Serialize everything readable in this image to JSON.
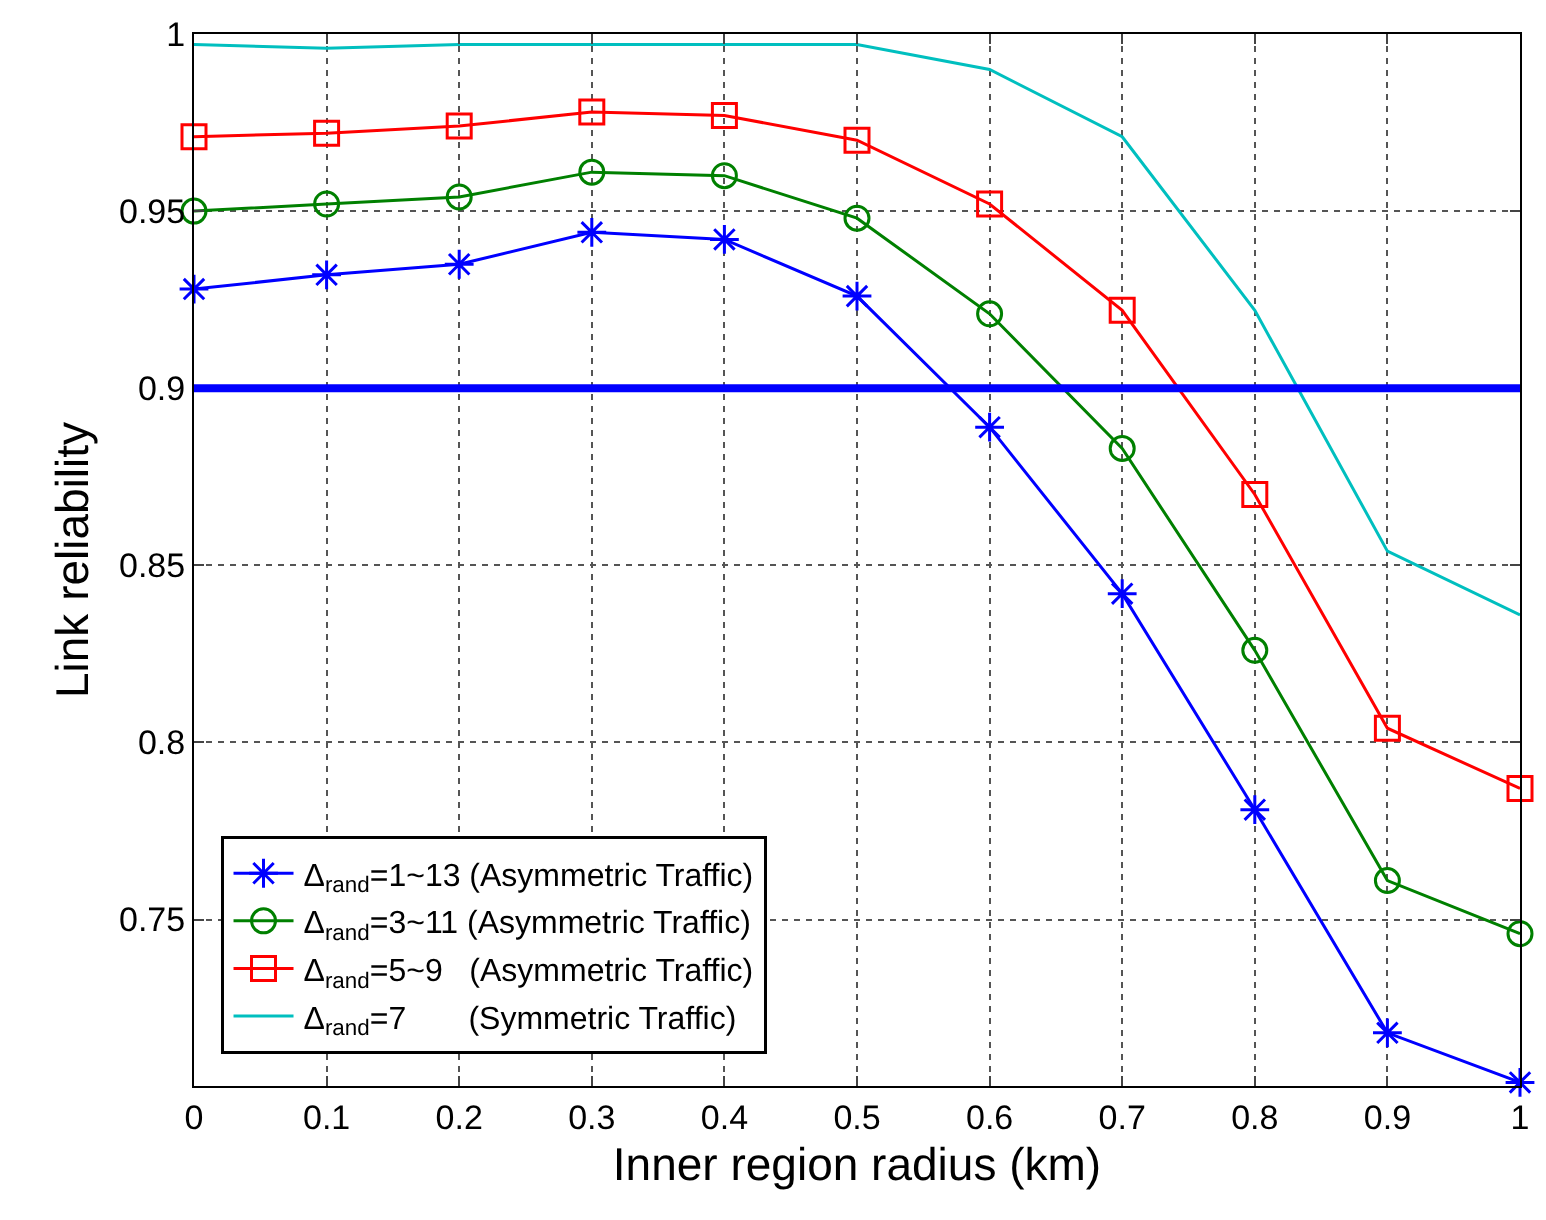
{
  "chart_data": {
    "type": "line",
    "xlabel": "Inner region radius (km)",
    "ylabel": "Link reliability",
    "x": [
      0,
      0.1,
      0.2,
      0.3,
      0.4,
      0.5,
      0.6,
      0.7,
      0.8,
      0.9,
      1
    ],
    "series": [
      {
        "name": "Δ$_{rand}$=1~13 (Asymmetric Traffic)",
        "color": "#0000ff",
        "marker": "cross",
        "values": [
          0.928,
          0.932,
          0.935,
          0.944,
          0.942,
          0.926,
          0.889,
          0.842,
          0.781,
          0.718,
          0.704
        ]
      },
      {
        "name": "Δ$_{rand}$=3~11 (Asymmetric Traffic)",
        "color": "#008000",
        "marker": "circle",
        "values": [
          0.95,
          0.952,
          0.954,
          0.961,
          0.96,
          0.948,
          0.921,
          0.883,
          0.826,
          0.761,
          0.746
        ]
      },
      {
        "name": "Δ$_{rand}$=5~9   (Asymmetric Traffic)",
        "color": "#ff0000",
        "marker": "square",
        "values": [
          0.971,
          0.972,
          0.974,
          0.978,
          0.977,
          0.97,
          0.952,
          0.922,
          0.87,
          0.804,
          0.787
        ]
      },
      {
        "name": "Δ$_{rand}$=7       (Symmetric Traffic)",
        "color": "#00bfbf",
        "marker": "none",
        "values": [
          0.997,
          0.996,
          0.997,
          0.997,
          0.997,
          0.997,
          0.99,
          0.971,
          0.922,
          0.854,
          0.836
        ]
      }
    ],
    "ref_lines": [
      {
        "axis": "y",
        "value": 0.9,
        "color": "#0000ff"
      }
    ],
    "xlim": [
      0,
      1
    ],
    "xticks": [
      0,
      0.1,
      0.2,
      0.3,
      0.4,
      0.5,
      0.6,
      0.7,
      0.8,
      0.9,
      1
    ],
    "ylim": [
      0.703,
      1
    ],
    "yticks": [
      0.75,
      0.8,
      0.85,
      0.9,
      0.95,
      1
    ],
    "grid": true,
    "legend": "bottom left",
    "line_style": "solid"
  }
}
